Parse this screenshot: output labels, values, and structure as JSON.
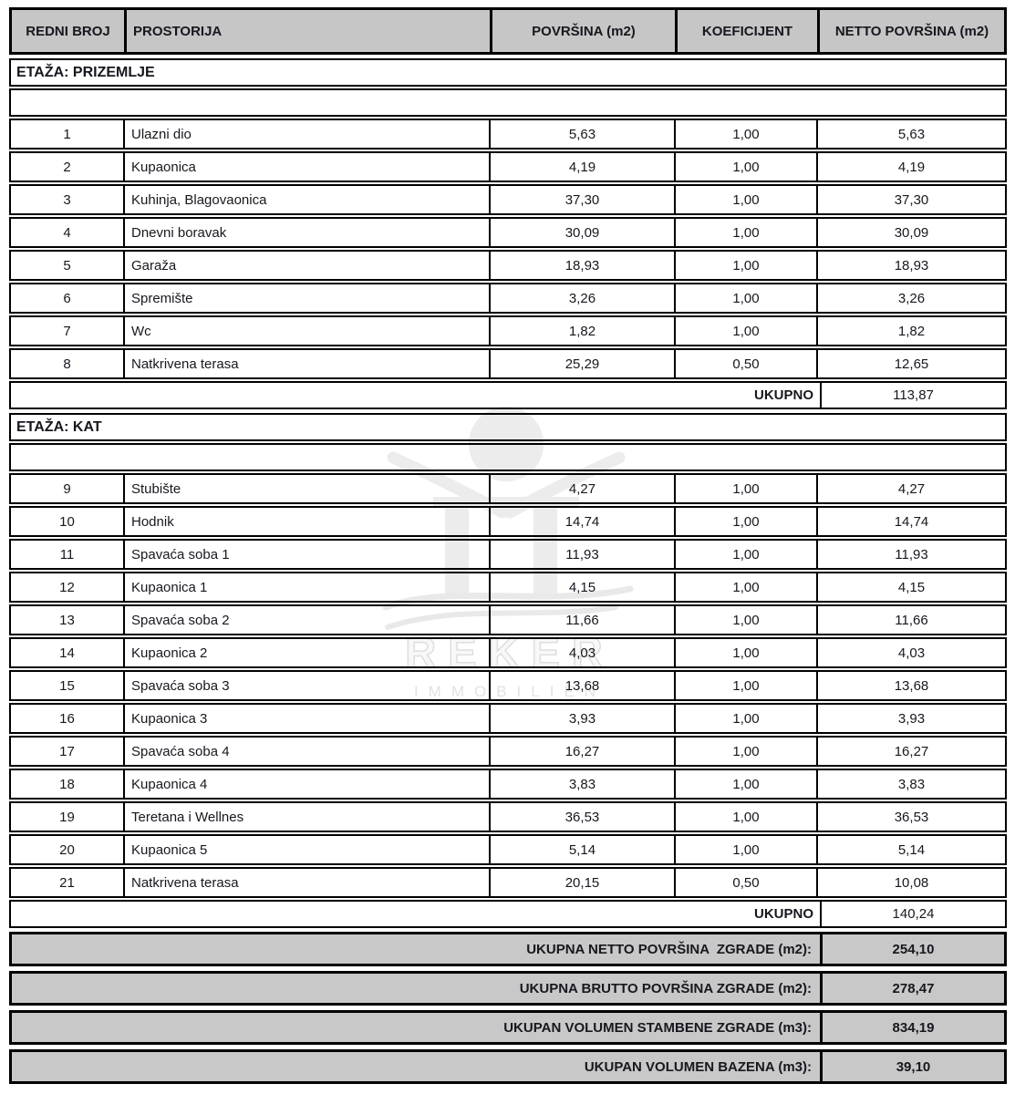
{
  "table": {
    "columns": [
      "REDNI BROJ",
      "PROSTORIJA",
      "POVRŠINA (m2)",
      "KOEFICIJENT",
      "NETTO POVRŠINA (m2)"
    ],
    "sections": [
      {
        "title": "ETAŽA: PRIZEMLJE",
        "rows": [
          {
            "num": "1",
            "name": "Ulazni dio",
            "area": "5,63",
            "coef": "1,00",
            "net": "5,63"
          },
          {
            "num": "2",
            "name": "Kupaonica",
            "area": "4,19",
            "coef": "1,00",
            "net": "4,19"
          },
          {
            "num": "3",
            "name": "Kuhinja, Blagovaonica",
            "area": "37,30",
            "coef": "1,00",
            "net": "37,30"
          },
          {
            "num": "4",
            "name": "Dnevni boravak",
            "area": "30,09",
            "coef": "1,00",
            "net": "30,09"
          },
          {
            "num": "5",
            "name": "Garaža",
            "area": "18,93",
            "coef": "1,00",
            "net": "18,93"
          },
          {
            "num": "6",
            "name": "Spremište",
            "area": "3,26",
            "coef": "1,00",
            "net": "3,26"
          },
          {
            "num": "7",
            "name": "Wc",
            "area": "1,82",
            "coef": "1,00",
            "net": "1,82"
          },
          {
            "num": "8",
            "name": "Natkrivena terasa",
            "area": "25,29",
            "coef": "0,50",
            "net": "12,65"
          }
        ],
        "total_label": "UKUPNO",
        "total_value": "113,87"
      },
      {
        "title": "ETAŽA: KAT",
        "rows": [
          {
            "num": "9",
            "name": "Stubište",
            "area": "4,27",
            "coef": "1,00",
            "net": "4,27"
          },
          {
            "num": "10",
            "name": "Hodnik",
            "area": "14,74",
            "coef": "1,00",
            "net": "14,74"
          },
          {
            "num": "11",
            "name": "Spavaća soba 1",
            "area": "11,93",
            "coef": "1,00",
            "net": "11,93"
          },
          {
            "num": "12",
            "name": "Kupaonica 1",
            "area": "4,15",
            "coef": "1,00",
            "net": "4,15"
          },
          {
            "num": "13",
            "name": "Spavaća soba 2",
            "area": "11,66",
            "coef": "1,00",
            "net": "11,66"
          },
          {
            "num": "14",
            "name": "Kupaonica 2",
            "area": "4,03",
            "coef": "1,00",
            "net": "4,03"
          },
          {
            "num": "15",
            "name": "Spavaća soba 3",
            "area": "13,68",
            "coef": "1,00",
            "net": "13,68"
          },
          {
            "num": "16",
            "name": "Kupaonica 3",
            "area": "3,93",
            "coef": "1,00",
            "net": "3,93"
          },
          {
            "num": "17",
            "name": "Spavaća soba 4",
            "area": "16,27",
            "coef": "1,00",
            "net": "16,27"
          },
          {
            "num": "18",
            "name": "Kupaonica 4",
            "area": "3,83",
            "coef": "1,00",
            "net": "3,83"
          },
          {
            "num": "19",
            "name": "Teretana i Wellnes",
            "area": "36,53",
            "coef": "1,00",
            "net": "36,53"
          },
          {
            "num": "20",
            "name": "Kupaonica 5",
            "area": "5,14",
            "coef": "1,00",
            "net": "5,14"
          },
          {
            "num": "21",
            "name": "Natkrivena terasa",
            "area": "20,15",
            "coef": "0,50",
            "net": "10,08"
          }
        ],
        "total_label": "UKUPNO",
        "total_value": "140,24"
      }
    ],
    "summary": [
      {
        "label": "UKUPNA NETTO POVRŠINA  ZGRADE (m2):",
        "value": "254,10"
      },
      {
        "label": "UKUPNA BRUTTO POVRŠINA ZGRADE (m2):",
        "value": "278,47"
      },
      {
        "label": "UKUPAN VOLUMEN STAMBENE ZGRADE (m3):",
        "value": "834,19"
      },
      {
        "label": "UKUPAN VOLUMEN BAZENA (m3):",
        "value": "39,10"
      }
    ]
  },
  "watermark": {
    "brand": "REKER",
    "subbrand": "IMMOBILIEN"
  },
  "colors": {
    "header_bg": "#c6c6c6",
    "summary_bg": "#c8c8c8",
    "border": "#000000",
    "text": "#17171f",
    "watermark": "#ececec"
  }
}
